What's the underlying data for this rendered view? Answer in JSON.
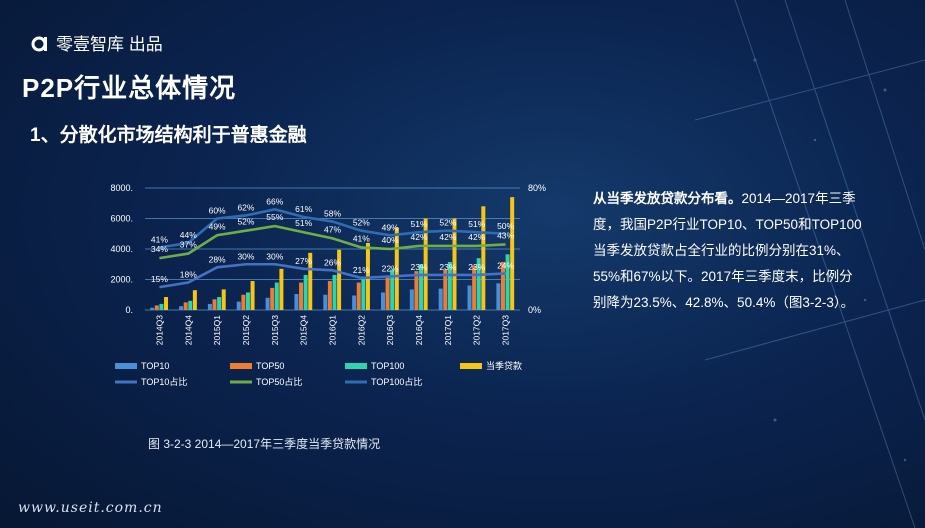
{
  "brand": {
    "logo_text": "零壹智库 出品"
  },
  "page_title": "P2P行业总体情况",
  "section_title": "1、分散化市场结构利于普惠金融",
  "caption": "图 3-2-3  2014—2017年三季度当季贷款情况",
  "body": {
    "lead": "从当季发放贷款分布看。",
    "text": "2014—2017年三季度，我国P2P行业TOP10、TOP50和TOP100当季发放贷款占全行业的比例分别在31%、55%和67%以下。2017年三季度末，比例分别降为23.5%、42.8%、50.4%（图3-2-3）。"
  },
  "footer_url": "www.useit.com.cn",
  "colors": {
    "top10": "#4a90d9",
    "top50": "#ed7d31",
    "top100": "#2dd4b0",
    "loan": "#f5c518",
    "top10_ratio": "#4472c4",
    "top50_ratio": "#70ad47",
    "top100_ratio": "#2e6db4"
  },
  "chart_data": {
    "type": "bar",
    "categories": [
      "2014Q3",
      "2014Q4",
      "2015Q1",
      "2015Q2",
      "2015Q3",
      "2015Q4",
      "2016Q1",
      "2016Q2",
      "2016Q3",
      "2016Q4",
      "2017Q1",
      "2017Q2",
      "2017Q3"
    ],
    "y_left_ticks": [
      "8000.",
      "6000.",
      "4000.",
      "2000.",
      "0."
    ],
    "y_right_ticks": [
      "80%",
      "0%"
    ],
    "ylim": [
      0,
      8000
    ],
    "y2lim": [
      0,
      80
    ],
    "series": [
      {
        "name": "TOP10",
        "kind": "bar",
        "values": [
          150,
          250,
          400,
          550,
          800,
          1050,
          1000,
          950,
          1150,
          1350,
          1400,
          1600,
          1750
        ]
      },
      {
        "name": "TOP50",
        "kind": "bar",
        "values": [
          300,
          500,
          700,
          1000,
          1450,
          1800,
          1900,
          1800,
          2200,
          2550,
          2650,
          2900,
          3150
        ]
      },
      {
        "name": "TOP100",
        "kind": "bar",
        "values": [
          400,
          600,
          850,
          1150,
          1800,
          2300,
          2300,
          2200,
          2650,
          3000,
          3150,
          3400,
          3650
        ]
      },
      {
        "name": "当季贷款",
        "kind": "bar",
        "values": [
          850,
          1300,
          1350,
          1900,
          2700,
          3750,
          3950,
          4400,
          5400,
          6000,
          6000,
          6800,
          7400
        ]
      },
      {
        "name": "TOP10占比",
        "kind": "line",
        "values": [
          15,
          18,
          28,
          30,
          30,
          27,
          26,
          21,
          22,
          23,
          23,
          23,
          24
        ],
        "labels": [
          "15%",
          "18%",
          "28%",
          "30%",
          "30%",
          "27%",
          "26%",
          "21%",
          "22%",
          "23%",
          "23%",
          "23%",
          "24%"
        ]
      },
      {
        "name": "TOP50占比",
        "kind": "line",
        "values": [
          34,
          37,
          49,
          52,
          55,
          51,
          47,
          41,
          40,
          42,
          42,
          42,
          43
        ],
        "labels": [
          "34%",
          "37%",
          "49%",
          "52%",
          "55%",
          "51%",
          "47%",
          "41%",
          "40%",
          "42%",
          "42%",
          "42%",
          "43%"
        ]
      },
      {
        "name": "TOP100占比",
        "kind": "line",
        "values": [
          41,
          44,
          60,
          62,
          66,
          61,
          58,
          52,
          49,
          51,
          52,
          51,
          50
        ],
        "labels": [
          "41%",
          "44%",
          "60%",
          "62%",
          "66%",
          "61%",
          "58%",
          "52%",
          "49%",
          "51%",
          "52%",
          "51%",
          "50%"
        ]
      }
    ],
    "legend_position": "bottom",
    "grid": true
  }
}
